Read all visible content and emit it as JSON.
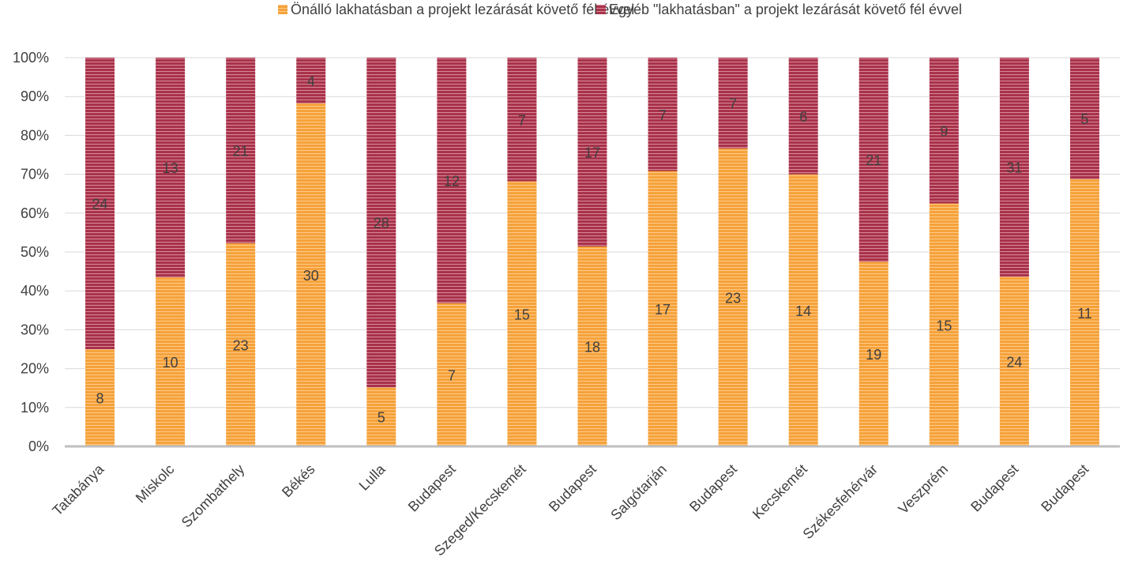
{
  "chart_data": {
    "type": "bar",
    "stacked": "percent",
    "categories": [
      "Tatabánya",
      "Miskolc",
      "Szombathely",
      "Békés",
      "Lulla",
      "Budapest",
      "Szeged/Kecskemét",
      "Budapest",
      "Salgótarján",
      "Budapest",
      "Kecskemét",
      "Székesfehérvár",
      "Veszprém",
      "Budapest",
      "Budapest"
    ],
    "series": [
      {
        "name": "Önálló lakhatásban a projekt lezárását követő fél évvel",
        "color": "#F5A23A",
        "values": [
          8,
          10,
          23,
          30,
          5,
          7,
          15,
          18,
          17,
          23,
          14,
          19,
          15,
          24,
          11
        ]
      },
      {
        "name": "Egyéb \"lakhatásban\" a projekt lezárását követő fél évvel",
        "color": "#A8324A",
        "values": [
          24,
          13,
          21,
          4,
          28,
          12,
          7,
          17,
          7,
          7,
          6,
          21,
          9,
          31,
          5
        ]
      }
    ],
    "yticks": [
      "0%",
      "10%",
      "20%",
      "30%",
      "40%",
      "50%",
      "60%",
      "70%",
      "80%",
      "90%",
      "100%"
    ],
    "ylim": [
      0,
      100
    ],
    "legend": "top",
    "grid": true
  }
}
